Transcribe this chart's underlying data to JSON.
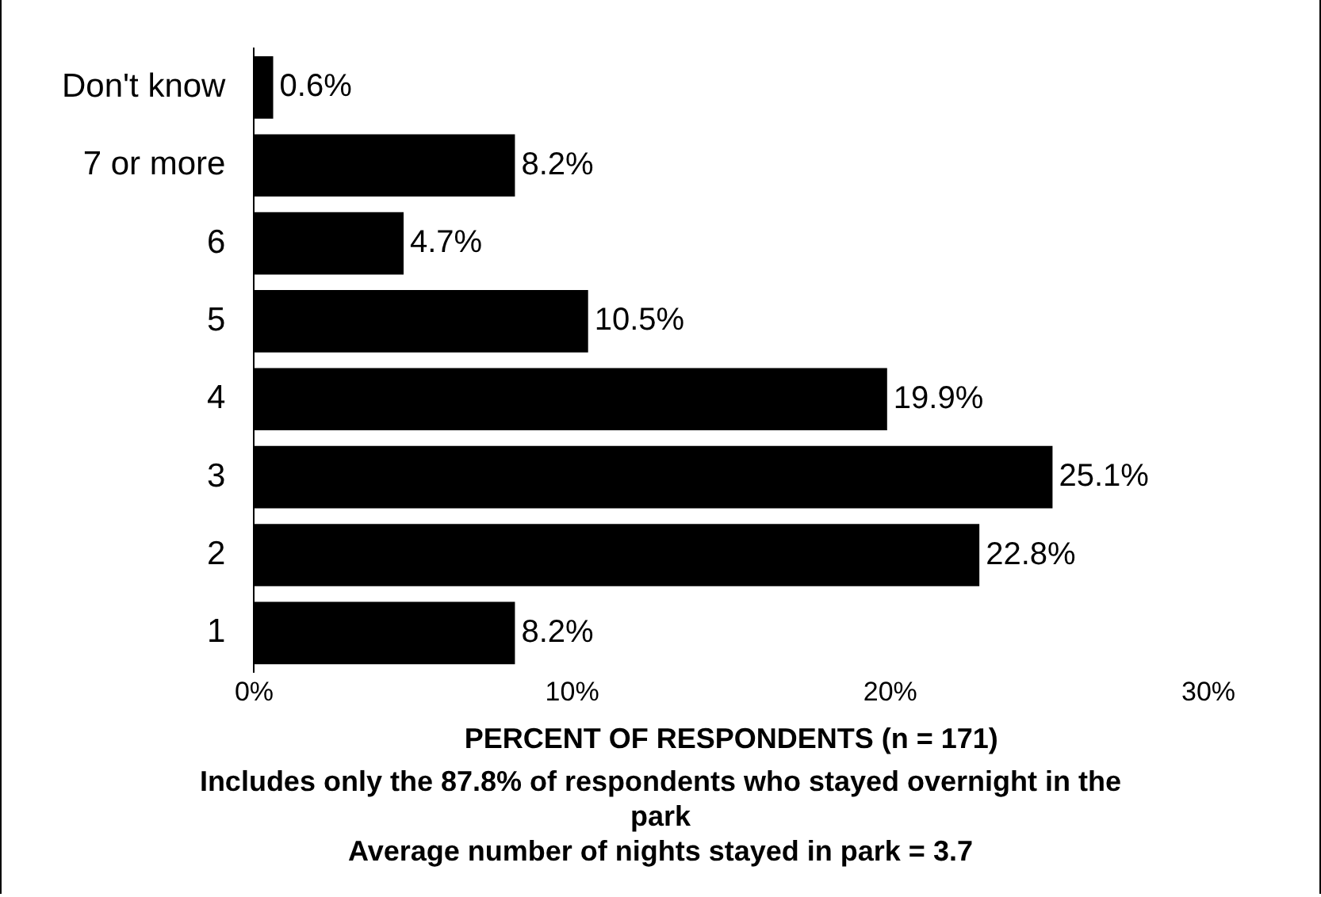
{
  "chart_data": {
    "type": "bar",
    "orientation": "horizontal",
    "categories": [
      "Don't know",
      "7 or more",
      "6",
      "5",
      "4",
      "3",
      "2",
      "1"
    ],
    "values": [
      0.6,
      8.2,
      4.7,
      10.5,
      19.9,
      25.1,
      22.8,
      8.2
    ],
    "value_labels": [
      "0.6%",
      "8.2%",
      "4.7%",
      "10.5%",
      "19.9%",
      "25.1%",
      "22.8%",
      "8.2%"
    ],
    "color": "#000000",
    "xlim": [
      0,
      30
    ],
    "xticks": [
      {
        "value": 0,
        "label": "0%"
      },
      {
        "value": 10,
        "label": "10%"
      },
      {
        "value": 20,
        "label": "20%"
      },
      {
        "value": 30,
        "label": "30%"
      }
    ],
    "xlabel": "PERCENT OF RESPONDENTS (n = 171)",
    "annotations": [
      "Includes only the 87.8% of respondents who stayed overnight in the park",
      "Average number of nights stayed in park = 3.7"
    ],
    "grid": false,
    "legend": false
  }
}
